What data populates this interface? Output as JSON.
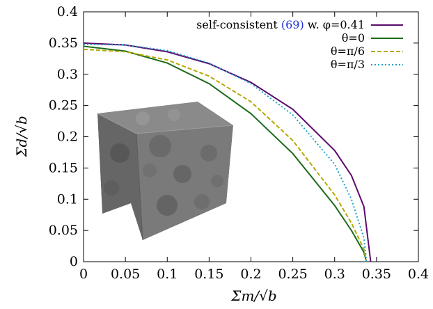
{
  "chart_data": {
    "type": "line",
    "xlabel": "Σm/√b",
    "ylabel": "Σd/√b",
    "xlim": [
      0,
      0.4
    ],
    "ylim": [
      0,
      0.4
    ],
    "x_ticks": [
      "0",
      "0.05",
      "0.1",
      "0.15",
      "0.2",
      "0.25",
      "0.3",
      "0.35",
      "0.4"
    ],
    "y_ticks": [
      "0",
      "0.05",
      "0.1",
      "0.15",
      "0.2",
      "0.25",
      "0.3",
      "0.35",
      "0.4"
    ],
    "grid": false,
    "legend_position": "top-right",
    "inset_image": "porous-cube-rendering",
    "series": [
      {
        "name": "self-consistent (69) w. φ=0.41",
        "name_parts": {
          "prefix": "self-consistent ",
          "ref": "(69)",
          "suffix": " w. φ=0.41"
        },
        "color": "#5b0a6e",
        "dash": "solid",
        "x": [
          0,
          0.05,
          0.1,
          0.15,
          0.2,
          0.25,
          0.3,
          0.32,
          0.335,
          0.343
        ],
        "y": [
          0.35,
          0.347,
          0.336,
          0.317,
          0.287,
          0.244,
          0.178,
          0.138,
          0.088,
          0
        ]
      },
      {
        "name": "θ=0",
        "color": "#1a6b1a",
        "dash": "solid",
        "x": [
          0,
          0.05,
          0.1,
          0.15,
          0.2,
          0.25,
          0.3,
          0.32,
          0.335,
          0.338
        ],
        "y": [
          0.345,
          0.337,
          0.318,
          0.285,
          0.237,
          0.173,
          0.09,
          0.05,
          0.015,
          0
        ]
      },
      {
        "name": "θ=π/6",
        "color": "#b5a800",
        "dash": "dashed",
        "x": [
          0,
          0.05,
          0.1,
          0.15,
          0.2,
          0.25,
          0.3,
          0.32,
          0.335,
          0.338
        ],
        "y": [
          0.34,
          0.336,
          0.323,
          0.297,
          0.256,
          0.194,
          0.107,
          0.062,
          0.02,
          0
        ]
      },
      {
        "name": "θ=π/3",
        "color": "#1aa3c7",
        "dash": "dotted",
        "x": [
          0,
          0.05,
          0.1,
          0.15,
          0.2,
          0.25,
          0.3,
          0.32,
          0.335,
          0.338
        ],
        "y": [
          0.348,
          0.347,
          0.338,
          0.318,
          0.285,
          0.235,
          0.156,
          0.1,
          0.038,
          0
        ]
      }
    ]
  }
}
